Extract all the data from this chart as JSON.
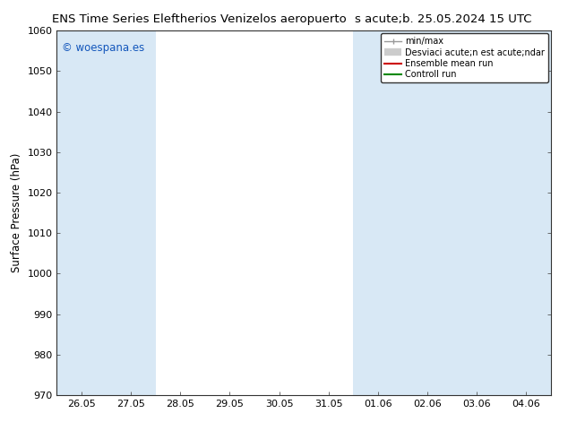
{
  "title_left": "ENS Time Series Eleftherios Venizelos aeropuerto",
  "title_right": "s acute;b. 25.05.2024 15 UTC",
  "ylabel": "Surface Pressure (hPa)",
  "ylim": [
    970,
    1060
  ],
  "yticks": [
    970,
    980,
    990,
    1000,
    1010,
    1020,
    1030,
    1040,
    1050,
    1060
  ],
  "xtick_labels": [
    "26.05",
    "27.05",
    "28.05",
    "29.05",
    "30.05",
    "31.05",
    "01.06",
    "02.06",
    "03.06",
    "04.06"
  ],
  "background_color": "#ffffff",
  "plot_bg_color": "#ffffff",
  "shade_color": "#d8e8f5",
  "shade_alpha": 1.0,
  "watermark_text": "© woespana.es",
  "watermark_color": "#1155bb",
  "legend_entries": [
    "min/max",
    "Desviaci acute;n est acute;ndar",
    "Ensemble mean run",
    "Controll run"
  ],
  "legend_line_colors": [
    "#aaaaaa",
    "#cccccc",
    "#cc0000",
    "#008800"
  ],
  "font_size_title": 9.5,
  "font_size_axis": 8.5,
  "font_size_ticks": 8,
  "font_size_watermark": 8.5,
  "font_size_legend": 7
}
